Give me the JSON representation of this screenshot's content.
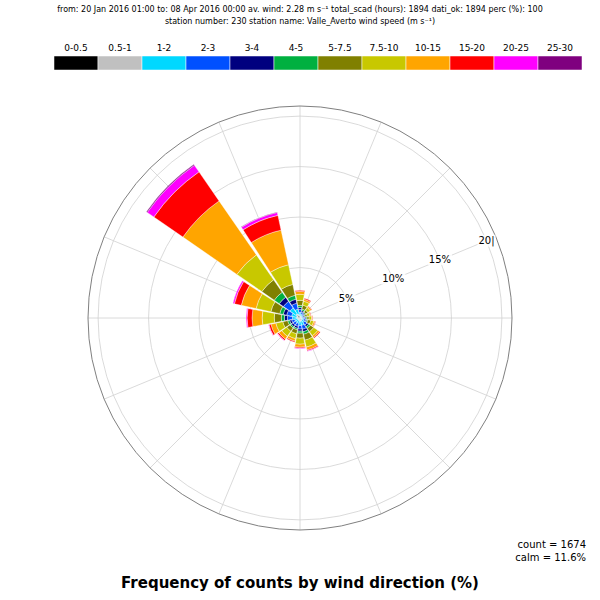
{
  "chart_data": {
    "type": "windrose",
    "title": "Frequency of counts by wind direction (%)",
    "subtitle": [
      "from: 20 Jan 2016 01:00  to: 08 Apr 2016  00:00  av. wind:  2.28 m s⁻¹  total_scad (hours): 1894   dati_ok: 1894   perc (%): 100",
      "station number:  230      station name:  Valle_Averto       wind speed (m s⁻¹)"
    ],
    "annotations": [
      "count = 1674",
      "calm = 11.6%"
    ],
    "x": [
      0,
      22.5,
      45,
      67.5,
      90,
      112.5,
      135,
      157.5,
      180,
      202.5,
      225,
      247.5,
      270,
      292.5,
      315,
      337.5
    ],
    "xlim": [
      0,
      360
    ],
    "xticks": [
      0,
      22.5,
      45,
      67.5,
      90,
      112.5,
      135,
      157.5,
      180,
      202.5,
      225,
      247.5,
      270,
      292.5,
      315,
      337.5
    ],
    "ylim": [
      0,
      21
    ],
    "yticks": [
      {
        "value": 5,
        "label": "5%"
      },
      {
        "value": 10,
        "label": "10%"
      },
      {
        "value": 15,
        "label": "15%"
      },
      {
        "value": 20,
        "label": "20|"
      }
    ],
    "tick_labels": "y",
    "grid": true,
    "stacked": true,
    "legend": "top",
    "series": [
      {
        "name": "0-0.5",
        "color": "#000000",
        "values": [
          0.15,
          0.1,
          0.1,
          0.1,
          0.1,
          0.1,
          0.15,
          0.2,
          0.2,
          0.15,
          0.15,
          0.15,
          0.2,
          0.2,
          0.3,
          0.25
        ]
      },
      {
        "name": "0.5-1",
        "color": "#c0c0c0",
        "values": [
          0.1,
          0.1,
          0.1,
          0.05,
          0.1,
          0.1,
          0.1,
          0.15,
          0.15,
          0.1,
          0.1,
          0.1,
          0.15,
          0.15,
          0.2,
          0.15
        ]
      },
      {
        "name": "1-2",
        "color": "#00d8ff",
        "values": [
          0.3,
          0.2,
          0.15,
          0.1,
          0.15,
          0.2,
          0.3,
          0.4,
          0.4,
          0.3,
          0.3,
          0.3,
          0.4,
          0.5,
          0.7,
          0.5
        ]
      },
      {
        "name": "2-3",
        "color": "#0050ff",
        "values": [
          0.3,
          0.2,
          0.15,
          0.1,
          0.15,
          0.2,
          0.3,
          0.4,
          0.35,
          0.3,
          0.3,
          0.3,
          0.5,
          0.5,
          0.8,
          0.6
        ]
      },
      {
        "name": "3-4",
        "color": "#00007f",
        "values": [
          0.2,
          0.15,
          0.1,
          0.1,
          0.1,
          0.1,
          0.2,
          0.25,
          0.2,
          0.2,
          0.2,
          0.2,
          0.3,
          0.35,
          0.5,
          0.4
        ]
      },
      {
        "name": "4-5",
        "color": "#00b040",
        "values": [
          0.2,
          0.15,
          0.1,
          0.1,
          0.1,
          0.1,
          0.2,
          0.25,
          0.2,
          0.15,
          0.15,
          0.2,
          0.3,
          0.35,
          0.6,
          0.4
        ]
      },
      {
        "name": "5-7.5",
        "color": "#808000",
        "values": [
          0.5,
          0.4,
          0.25,
          0.2,
          0.2,
          0.3,
          0.4,
          0.6,
          0.5,
          0.4,
          0.4,
          0.5,
          0.7,
          0.9,
          1.5,
          1.1
        ]
      },
      {
        "name": "7.5-10",
        "color": "#c8c800",
        "values": [
          0.6,
          0.4,
          0.3,
          0.25,
          0.25,
          0.3,
          0.5,
          0.7,
          0.6,
          0.5,
          0.6,
          0.7,
          1.2,
          1.5,
          3.0,
          2.0
        ]
      },
      {
        "name": "10-15",
        "color": "#ffa500",
        "values": [
          0.3,
          0.2,
          0.15,
          0.1,
          0.1,
          0.15,
          0.2,
          0.3,
          0.3,
          0.25,
          0.35,
          0.5,
          1.0,
          1.5,
          6.5,
          3.5
        ]
      },
      {
        "name": "15-20",
        "color": "#ff0000",
        "values": [
          0.1,
          0.1,
          0.05,
          0.05,
          0.05,
          0.05,
          0.1,
          0.1,
          0.1,
          0.1,
          0.15,
          0.2,
          0.5,
          0.7,
          3.5,
          1.5
        ]
      },
      {
        "name": "20-25",
        "color": "#ff00ff",
        "values": [
          0.0,
          0.0,
          0.0,
          0.0,
          0.0,
          0.0,
          0.0,
          0.05,
          0.05,
          0.0,
          0.05,
          0.05,
          0.1,
          0.15,
          0.8,
          0.3
        ]
      },
      {
        "name": "25-30",
        "color": "#7f007f",
        "values": [
          0.0,
          0.0,
          0.0,
          0.0,
          0.0,
          0.0,
          0.0,
          0.0,
          0.0,
          0.0,
          0.0,
          0.0,
          0.0,
          0.0,
          0.1,
          0.05
        ]
      }
    ]
  }
}
